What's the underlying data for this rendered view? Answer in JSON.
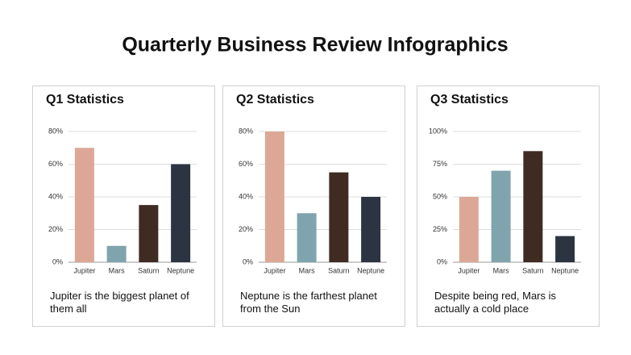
{
  "title": "Quarterly Business Review Infographics",
  "chart_data": [
    {
      "type": "bar",
      "title": "Q1 Statistics",
      "categories": [
        "Jupiter",
        "Mars",
        "Saturn",
        "Neptune"
      ],
      "values": [
        70,
        10,
        35,
        60
      ],
      "colors": [
        "#dca895",
        "#7fa4ad",
        "#3f2b22",
        "#2c3442"
      ],
      "ylim": [
        0,
        80
      ],
      "yticks": [
        {
          "value": 0,
          "label": "0%"
        },
        {
          "value": 20,
          "label": "20%"
        },
        {
          "value": 40,
          "label": "40%"
        },
        {
          "value": 60,
          "label": "60%"
        },
        {
          "value": 80,
          "label": "80%"
        }
      ],
      "grid": true,
      "caption": "Jupiter is the biggest planet of them all"
    },
    {
      "type": "bar",
      "title": "Q2 Statistics",
      "categories": [
        "Jupiter",
        "Mars",
        "Saturn",
        "Neptune"
      ],
      "values": [
        80,
        30,
        55,
        40
      ],
      "colors": [
        "#dca895",
        "#7fa4ad",
        "#3f2b22",
        "#2c3442"
      ],
      "ylim": [
        0,
        80
      ],
      "yticks": [
        {
          "value": 0,
          "label": "0%"
        },
        {
          "value": 20,
          "label": "20%"
        },
        {
          "value": 40,
          "label": "40%"
        },
        {
          "value": 60,
          "label": "60%"
        },
        {
          "value": 80,
          "label": "80%"
        }
      ],
      "grid": true,
      "caption": "Neptune is the farthest planet from the Sun"
    },
    {
      "type": "bar",
      "title": "Q3 Statistics",
      "categories": [
        "Jupiter",
        "Mars",
        "Saturn",
        "Neptune"
      ],
      "values": [
        50,
        70,
        85,
        20
      ],
      "colors": [
        "#dca895",
        "#7fa4ad",
        "#3f2b22",
        "#2c3442"
      ],
      "ylim": [
        0,
        100
      ],
      "yticks": [
        {
          "value": 0,
          "label": "0%"
        },
        {
          "value": 25,
          "label": "25%"
        },
        {
          "value": 50,
          "label": "50%"
        },
        {
          "value": 75,
          "label": "75%"
        },
        {
          "value": 100,
          "label": "100%"
        }
      ],
      "grid": true,
      "caption": "Despite being red, Mars is actually a cold place"
    }
  ]
}
